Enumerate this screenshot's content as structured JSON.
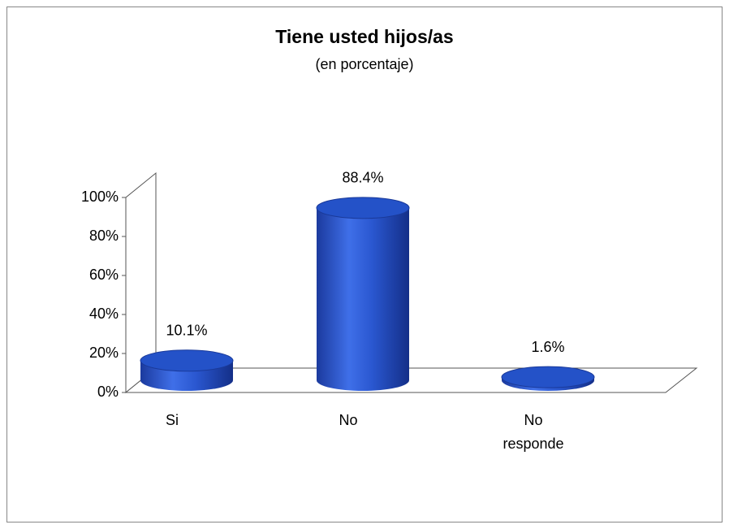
{
  "chart_data": {
    "type": "bar3d",
    "title": "Tiene usted hijos/as",
    "subtitle": "(en porcentaje)",
    "categories": [
      "Si",
      "No",
      "No responde"
    ],
    "values": [
      10.1,
      88.4,
      1.6
    ],
    "value_labels": [
      "10.1%",
      "88.4%",
      "1.6%"
    ],
    "color": "#2452c8",
    "ylim": [
      0,
      100
    ],
    "yticks": [
      {
        "value": 0,
        "label": "0%"
      },
      {
        "value": 20,
        "label": "20%"
      },
      {
        "value": 40,
        "label": "40%"
      },
      {
        "value": 60,
        "label": "60%"
      },
      {
        "value": 80,
        "label": "80%"
      },
      {
        "value": 100,
        "label": "100%"
      }
    ],
    "grid": false
  }
}
